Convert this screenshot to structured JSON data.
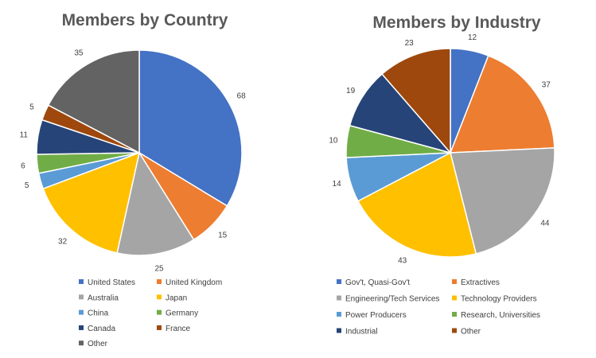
{
  "chart_data": [
    {
      "type": "pie",
      "title": "Members by Country",
      "categories": [
        "United States",
        "United Kingdom",
        "Australia",
        "Japan",
        "China",
        "Germany",
        "Canada",
        "France",
        "Other"
      ],
      "values": [
        68,
        15,
        25,
        32,
        5,
        6,
        11,
        5,
        35
      ],
      "colors": [
        "#4472C4",
        "#ED7D31",
        "#A5A5A5",
        "#FFC000",
        "#5B9BD5",
        "#70AD47",
        "#264478",
        "#9E480E",
        "#636363"
      ],
      "legend_position": "bottom",
      "legend_columns": 2
    },
    {
      "type": "pie",
      "title": "Members by Industry",
      "categories": [
        "Gov't, Quasi-Gov't",
        "Extractives",
        "Engineering/Tech Services",
        "Technology Providers",
        "Power Producers",
        "Research, Universities",
        "Industrial",
        "Other"
      ],
      "values": [
        12,
        37,
        44,
        43,
        14,
        10,
        19,
        23
      ],
      "colors": [
        "#4472C4",
        "#ED7D31",
        "#A5A5A5",
        "#FFC000",
        "#5B9BD5",
        "#70AD47",
        "#264478",
        "#9E480E"
      ],
      "legend_position": "bottom",
      "legend_columns": 2
    }
  ]
}
